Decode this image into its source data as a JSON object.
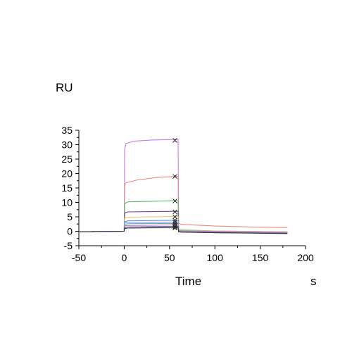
{
  "chart_data": {
    "type": "line",
    "title": "",
    "xlabel": "Time",
    "xunit": "s",
    "ylabel": "RU",
    "xlim": [
      -50,
      200
    ],
    "ylim": [
      -5,
      35
    ],
    "xticks": [
      "-50",
      "0",
      "50",
      "100",
      "150",
      "200"
    ],
    "yticks": [
      "-5",
      "0",
      "5",
      "10",
      "15",
      "20",
      "25",
      "30",
      "35"
    ],
    "grid": false,
    "marker_time": 56,
    "series": [
      {
        "color": "#c77be8",
        "values": [
          [
            -50,
            -0.2
          ],
          [
            -0.5,
            0
          ],
          [
            0,
            0
          ],
          [
            0.5,
            28.5
          ],
          [
            2,
            30.4
          ],
          [
            10,
            31.2
          ],
          [
            30,
            31.6
          ],
          [
            56,
            31.8
          ],
          [
            59.5,
            31.8
          ],
          [
            60,
            0
          ],
          [
            62,
            -0.2
          ],
          [
            100,
            -0.4
          ],
          [
            180,
            -0.5
          ]
        ],
        "marker": 31.5
      },
      {
        "color": "#e88a80",
        "values": [
          [
            -50,
            -0.2
          ],
          [
            -0.5,
            0
          ],
          [
            0,
            0
          ],
          [
            0.5,
            16.0
          ],
          [
            2,
            16.8
          ],
          [
            15,
            17.8
          ],
          [
            35,
            18.6
          ],
          [
            56,
            19.0
          ],
          [
            59.5,
            19.0
          ],
          [
            60,
            2.8
          ],
          [
            63,
            2.4
          ],
          [
            100,
            1.8
          ],
          [
            140,
            1.5
          ],
          [
            180,
            1.3
          ]
        ],
        "marker": 19.0
      },
      {
        "color": "#5fb864",
        "values": [
          [
            -50,
            -0.2
          ],
          [
            -0.5,
            0
          ],
          [
            0,
            0
          ],
          [
            0.5,
            9.6
          ],
          [
            4,
            10.2
          ],
          [
            30,
            10.4
          ],
          [
            56,
            10.6
          ],
          [
            59.5,
            10.6
          ],
          [
            60,
            0.6
          ],
          [
            63,
            0.5
          ],
          [
            100,
            0.1
          ],
          [
            180,
            -0.2
          ]
        ],
        "marker": 10.5
      },
      {
        "color": "#7a3ea0",
        "values": [
          [
            -50,
            -0.2
          ],
          [
            -0.5,
            0
          ],
          [
            0,
            0
          ],
          [
            0.5,
            6.3
          ],
          [
            4,
            6.7
          ],
          [
            30,
            6.8
          ],
          [
            56,
            6.9
          ],
          [
            59.5,
            6.9
          ],
          [
            60,
            0.1
          ],
          [
            63,
            -0.1
          ],
          [
            100,
            -0.3
          ],
          [
            180,
            -0.6
          ]
        ],
        "marker": 6.7
      },
      {
        "color": "#e8c86a",
        "values": [
          [
            -50,
            -0.2
          ],
          [
            -0.5,
            0
          ],
          [
            0,
            0
          ],
          [
            0.5,
            4.6
          ],
          [
            4,
            4.9
          ],
          [
            30,
            5.0
          ],
          [
            56,
            5.1
          ],
          [
            59.5,
            5.1
          ],
          [
            60,
            0.5
          ],
          [
            63,
            0.4
          ],
          [
            100,
            0.1
          ],
          [
            180,
            -0.2
          ]
        ],
        "marker": 5.0
      },
      {
        "color": "#6b8fd6",
        "values": [
          [
            -50,
            -0.2
          ],
          [
            -0.5,
            0
          ],
          [
            0,
            0
          ],
          [
            0.5,
            3.3
          ],
          [
            4,
            3.6
          ],
          [
            30,
            3.7
          ],
          [
            56,
            3.8
          ],
          [
            59.5,
            3.8
          ],
          [
            60,
            -0.1
          ],
          [
            63,
            -0.2
          ],
          [
            100,
            -0.4
          ],
          [
            180,
            -0.6
          ]
        ],
        "marker": 3.8
      },
      {
        "color": "#9b9be0",
        "values": [
          [
            -50,
            -0.2
          ],
          [
            -0.5,
            0
          ],
          [
            0,
            0
          ],
          [
            0.5,
            2.9
          ],
          [
            4,
            3.0
          ],
          [
            30,
            3.1
          ],
          [
            56,
            3.2
          ],
          [
            59.5,
            3.2
          ],
          [
            60,
            0.3
          ],
          [
            63,
            0.2
          ],
          [
            100,
            0
          ],
          [
            180,
            -0.3
          ]
        ],
        "marker": 3.1
      },
      {
        "color": "#58b6c8",
        "values": [
          [
            -50,
            -0.2
          ],
          [
            -0.5,
            0
          ],
          [
            0,
            0
          ],
          [
            0.5,
            2.5
          ],
          [
            4,
            2.6
          ],
          [
            30,
            2.7
          ],
          [
            56,
            2.7
          ],
          [
            59.5,
            2.7
          ],
          [
            60,
            0.2
          ],
          [
            63,
            0.1
          ],
          [
            100,
            -0.1
          ],
          [
            180,
            -0.4
          ]
        ],
        "marker": 2.5
      },
      {
        "color": "#d86fb0",
        "values": [
          [
            -50,
            -0.2
          ],
          [
            -0.5,
            0
          ],
          [
            0,
            0
          ],
          [
            0.5,
            1.9
          ],
          [
            4,
            2.0
          ],
          [
            30,
            2.1
          ],
          [
            56,
            2.2
          ],
          [
            59.5,
            2.2
          ],
          [
            60,
            0.1
          ],
          [
            63,
            0
          ],
          [
            100,
            -0.2
          ],
          [
            180,
            -0.4
          ]
        ],
        "marker": 2.0
      },
      {
        "color": "#3d4fa8",
        "values": [
          [
            -50,
            -0.2
          ],
          [
            -0.5,
            0
          ],
          [
            0,
            0
          ],
          [
            0.5,
            1.4
          ],
          [
            4,
            1.5
          ],
          [
            30,
            1.6
          ],
          [
            56,
            1.7
          ],
          [
            59.5,
            1.7
          ],
          [
            60,
            -0.1
          ],
          [
            63,
            -0.3
          ],
          [
            100,
            -0.5
          ],
          [
            180,
            -0.7
          ]
        ],
        "marker": 1.5
      },
      {
        "color": "#3a3a3a",
        "values": [
          [
            -50,
            -0.2
          ],
          [
            -0.5,
            0
          ],
          [
            0,
            0
          ],
          [
            0.5,
            1.0
          ],
          [
            4,
            1.1
          ],
          [
            30,
            1.2
          ],
          [
            56,
            1.2
          ],
          [
            59.5,
            1.2
          ],
          [
            60,
            -0.2
          ],
          [
            63,
            -0.3
          ],
          [
            100,
            -0.5
          ],
          [
            180,
            -0.8
          ]
        ],
        "marker": 1.1
      }
    ]
  }
}
